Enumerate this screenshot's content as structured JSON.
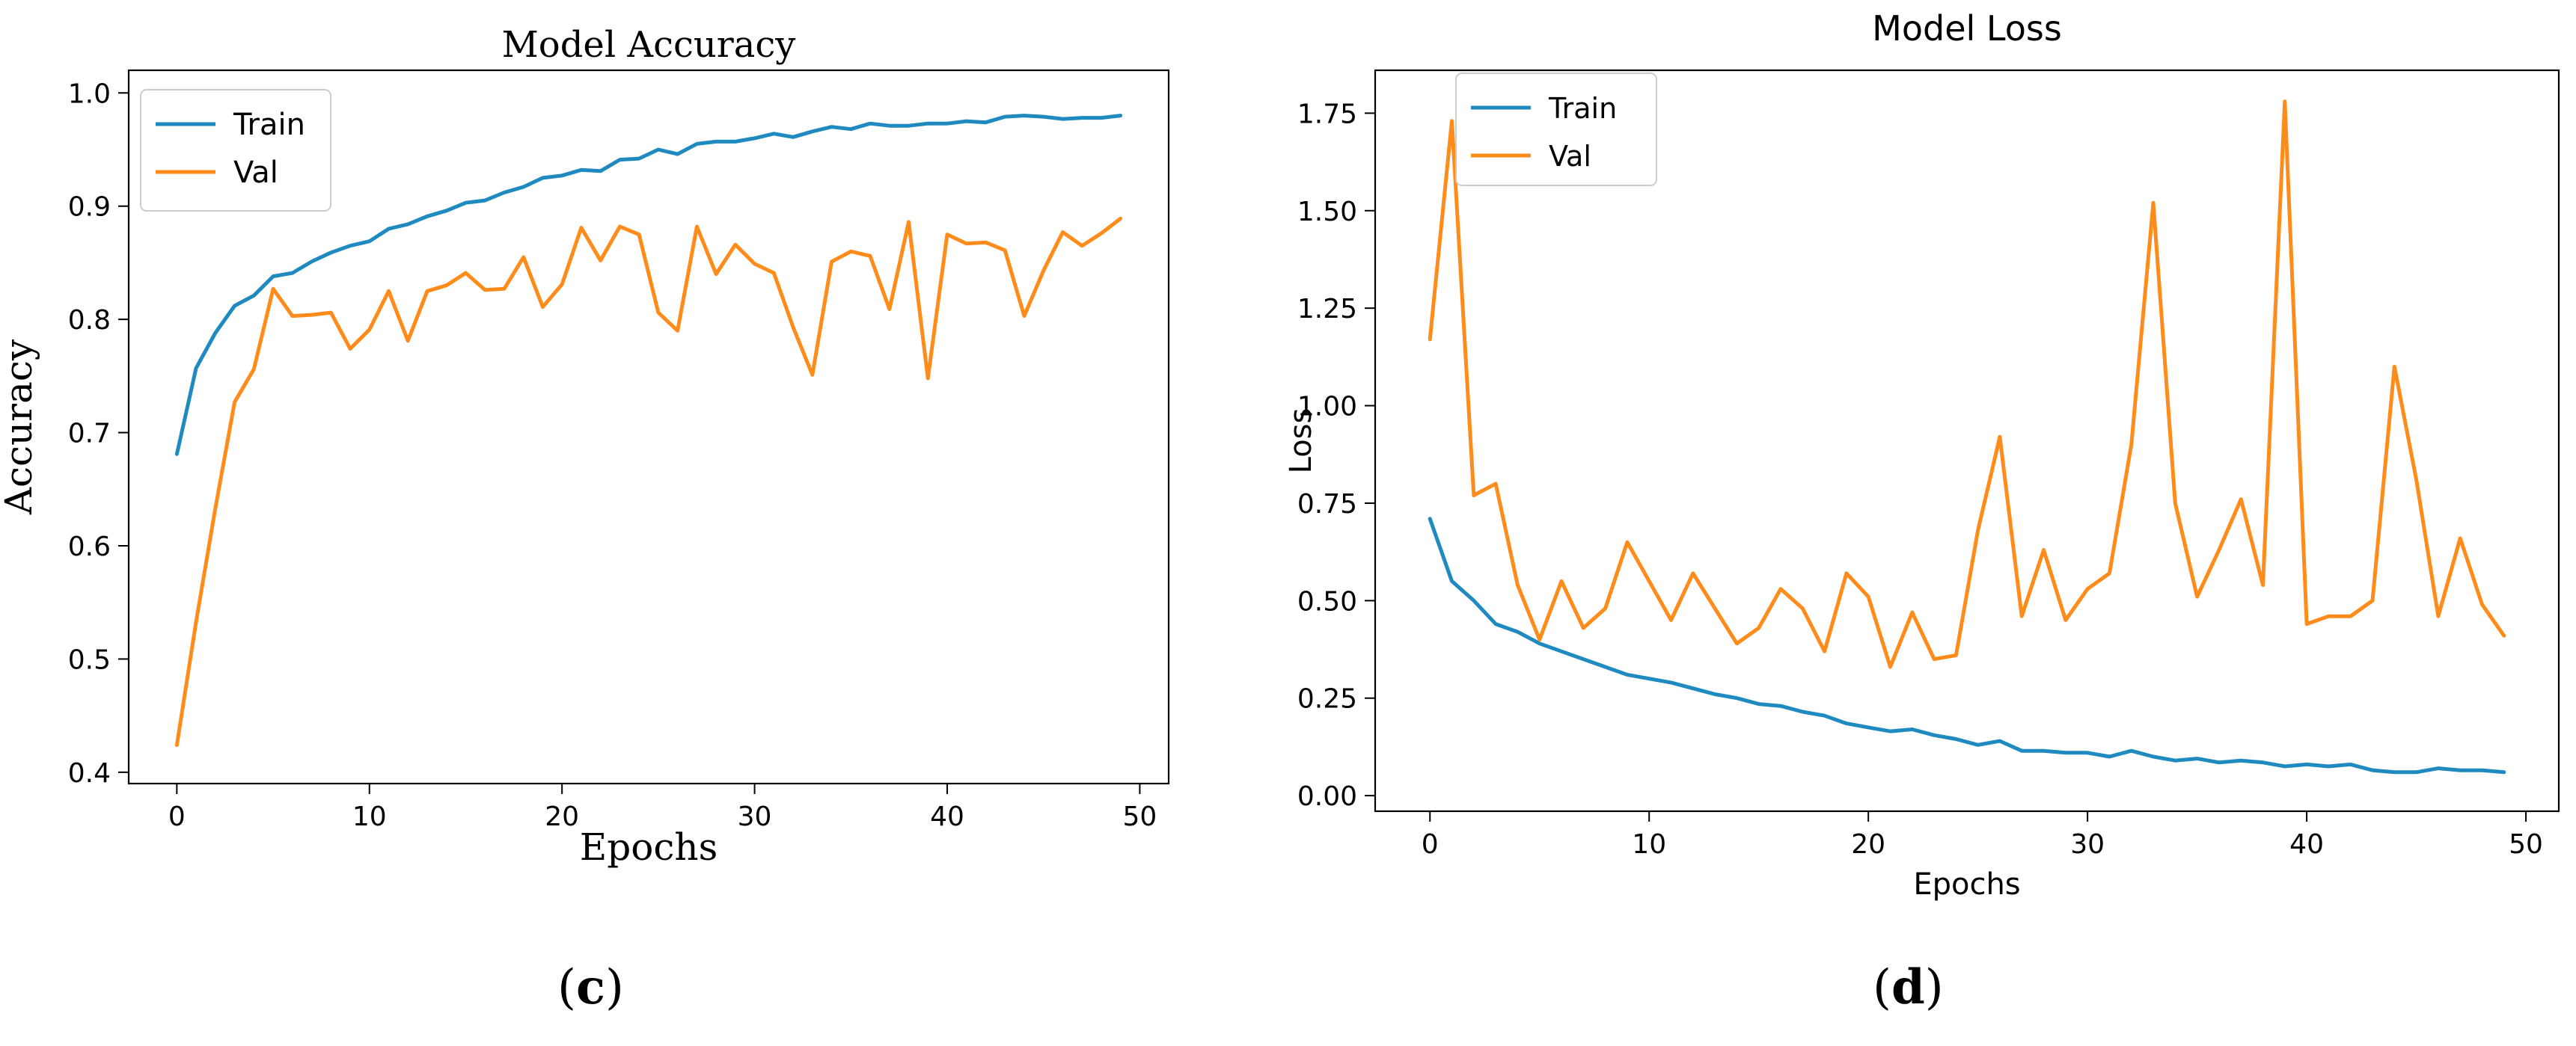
{
  "panels": [
    {
      "label": "c",
      "chart_data": {
        "type": "line",
        "title": "Model Accuracy",
        "xlabel": "Epochs",
        "ylabel": "Accuracy",
        "xlim": [
          -2.5,
          51.5
        ],
        "ylim": [
          0.39,
          1.02
        ],
        "xticks": [
          0,
          10,
          20,
          30,
          40,
          50
        ],
        "yticks": [
          0.4,
          0.5,
          0.6,
          0.7,
          0.8,
          0.9,
          1.0
        ],
        "legend": "upper-left",
        "grid": false,
        "x": [
          0,
          1,
          2,
          3,
          4,
          5,
          6,
          7,
          8,
          9,
          10,
          11,
          12,
          13,
          14,
          15,
          16,
          17,
          18,
          19,
          20,
          21,
          22,
          23,
          24,
          25,
          26,
          27,
          28,
          29,
          30,
          31,
          32,
          33,
          34,
          35,
          36,
          37,
          38,
          39,
          40,
          41,
          42,
          43,
          44,
          45,
          46,
          47,
          48,
          49
        ],
        "series": [
          {
            "name": "Train",
            "color": "#1f8ac0",
            "values": [
              0.681,
              0.757,
              0.788,
              0.812,
              0.821,
              0.838,
              0.841,
              0.851,
              0.859,
              0.865,
              0.869,
              0.88,
              0.884,
              0.891,
              0.896,
              0.903,
              0.905,
              0.912,
              0.917,
              0.925,
              0.927,
              0.932,
              0.931,
              0.941,
              0.942,
              0.95,
              0.946,
              0.955,
              0.957,
              0.957,
              0.96,
              0.964,
              0.961,
              0.966,
              0.97,
              0.968,
              0.973,
              0.971,
              0.971,
              0.973,
              0.973,
              0.975,
              0.974,
              0.979,
              0.98,
              0.979,
              0.977,
              0.978,
              0.978,
              0.98
            ]
          },
          {
            "name": "Val",
            "color": "#ff8c1a",
            "values": [
              0.424,
              0.533,
              0.633,
              0.727,
              0.756,
              0.827,
              0.803,
              0.804,
              0.806,
              0.774,
              0.791,
              0.825,
              0.781,
              0.825,
              0.83,
              0.841,
              0.826,
              0.827,
              0.855,
              0.811,
              0.831,
              0.881,
              0.852,
              0.882,
              0.875,
              0.806,
              0.79,
              0.882,
              0.84,
              0.866,
              0.849,
              0.841,
              0.793,
              0.751,
              0.851,
              0.86,
              0.856,
              0.809,
              0.886,
              0.748,
              0.875,
              0.867,
              0.868,
              0.861,
              0.803,
              0.843,
              0.877,
              0.865,
              0.876,
              0.889
            ]
          }
        ]
      }
    },
    {
      "label": "d",
      "chart_data": {
        "type": "line",
        "title": "Model Loss",
        "xlabel": "Epochs",
        "ylabel": "Loss",
        "xlim": [
          -2.5,
          51.5
        ],
        "ylim": [
          -0.04,
          1.86
        ],
        "xticks": [
          0,
          10,
          20,
          30,
          40,
          50
        ],
        "yticks": [
          0.0,
          0.25,
          0.5,
          0.75,
          1.0,
          1.25,
          1.5,
          1.75
        ],
        "ytick_labels": [
          "0.00",
          "0.25",
          "0.50",
          "0.75",
          "1.00",
          "1.25",
          "1.50",
          "1.75"
        ],
        "legend": "upper-left",
        "grid": false,
        "x": [
          0,
          1,
          2,
          3,
          4,
          5,
          6,
          7,
          8,
          9,
          10,
          11,
          12,
          13,
          14,
          15,
          16,
          17,
          18,
          19,
          20,
          21,
          22,
          23,
          24,
          25,
          26,
          27,
          28,
          29,
          30,
          31,
          32,
          33,
          34,
          35,
          36,
          37,
          38,
          39,
          40,
          41,
          42,
          43,
          44,
          45,
          46,
          47,
          48,
          49
        ],
        "series": [
          {
            "name": "Train",
            "color": "#1f8ac0",
            "values": [
              0.71,
              0.55,
              0.5,
              0.44,
              0.42,
              0.39,
              0.37,
              0.35,
              0.33,
              0.31,
              0.3,
              0.29,
              0.275,
              0.26,
              0.25,
              0.235,
              0.23,
              0.215,
              0.205,
              0.185,
              0.175,
              0.165,
              0.17,
              0.155,
              0.145,
              0.13,
              0.14,
              0.115,
              0.115,
              0.11,
              0.11,
              0.1,
              0.115,
              0.1,
              0.09,
              0.095,
              0.085,
              0.09,
              0.085,
              0.075,
              0.08,
              0.075,
              0.08,
              0.065,
              0.06,
              0.06,
              0.07,
              0.065,
              0.065,
              0.06
            ]
          },
          {
            "name": "Val",
            "color": "#ff8c1a",
            "values": [
              1.17,
              1.73,
              0.77,
              0.8,
              0.54,
              0.4,
              0.55,
              0.43,
              0.48,
              0.65,
              0.55,
              0.45,
              0.57,
              0.48,
              0.39,
              0.43,
              0.53,
              0.48,
              0.37,
              0.57,
              0.51,
              0.33,
              0.47,
              0.35,
              0.36,
              0.68,
              0.92,
              0.46,
              0.63,
              0.45,
              0.53,
              0.57,
              0.9,
              1.52,
              0.75,
              0.51,
              0.63,
              0.76,
              0.54,
              1.78,
              0.44,
              0.46,
              0.46,
              0.5,
              1.1,
              0.81,
              0.46,
              0.66,
              0.49,
              0.41
            ]
          }
        ]
      }
    }
  ]
}
